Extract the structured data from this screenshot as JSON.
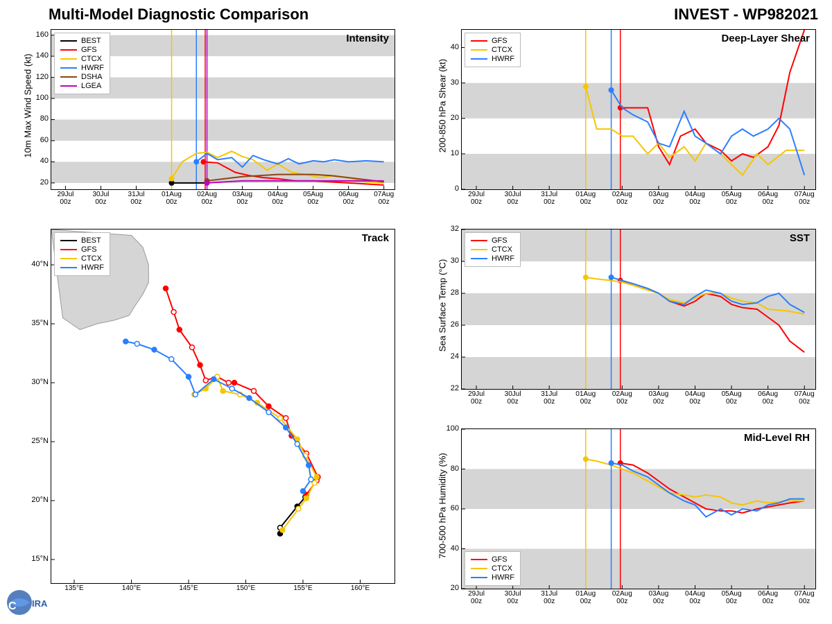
{
  "title_left": "Multi-Model Diagnostic Comparison",
  "title_right": "INVEST - WP982021",
  "colors": {
    "BEST": "#000000",
    "GFS": "#ff0000",
    "CTCX": "#f5c600",
    "HWRF": "#2a7fff",
    "DSHA": "#8b4513",
    "LGEA": "#c000c0",
    "band": "#d5d5d5",
    "grid": "#e0e0e0"
  },
  "x_ticks": [
    "29Jul\n00z",
    "30Jul\n00z",
    "31Jul\n00z",
    "01Aug\n00z",
    "02Aug\n00z",
    "03Aug\n00z",
    "04Aug\n00z",
    "05Aug\n00z",
    "06Aug\n00z",
    "07Aug\n00z"
  ],
  "intensity": {
    "title": "Intensity",
    "ylabel": "10m Max Wind Speed (kt)",
    "ylim": [
      14,
      165
    ],
    "yticks": [
      20,
      40,
      60,
      80,
      100,
      120,
      140,
      160
    ],
    "legend": [
      "BEST",
      "GFS",
      "CTCX",
      "HWRF",
      "DSHA",
      "LGEA"
    ],
    "vlines": {
      "CTCX": 3.0,
      "HWRF": 3.7,
      "GFS": 3.95,
      "LGEA": 4.0
    },
    "series": {
      "BEST": [
        [
          3,
          20
        ],
        [
          3.5,
          20
        ],
        [
          4,
          20
        ]
      ],
      "GFS": [
        [
          3.9,
          40
        ],
        [
          4.3,
          39
        ],
        [
          4.8,
          30
        ],
        [
          5.2,
          27
        ],
        [
          5.6,
          25
        ],
        [
          6.0,
          24
        ],
        [
          6.5,
          22
        ],
        [
          7.0,
          22
        ],
        [
          7.5,
          21
        ],
        [
          8.0,
          20
        ],
        [
          8.5,
          19
        ],
        [
          9.0,
          18
        ]
      ],
      "CTCX": [
        [
          3,
          24
        ],
        [
          3.3,
          40
        ],
        [
          3.7,
          48
        ],
        [
          4.0,
          49
        ],
        [
          4.3,
          44
        ],
        [
          4.7,
          50
        ],
        [
          5.0,
          45
        ],
        [
          5.3,
          42
        ],
        [
          5.7,
          32
        ],
        [
          6.0,
          38
        ],
        [
          6.4,
          30
        ],
        [
          6.8,
          28
        ],
        [
          7.2,
          25
        ],
        [
          7.6,
          27
        ],
        [
          8.0,
          25
        ],
        [
          8.5,
          21
        ],
        [
          9.0,
          20
        ]
      ],
      "HWRF": [
        [
          3.7,
          40
        ],
        [
          4.0,
          48
        ],
        [
          4.3,
          42
        ],
        [
          4.7,
          44
        ],
        [
          5.0,
          35
        ],
        [
          5.3,
          46
        ],
        [
          5.6,
          42
        ],
        [
          6.0,
          38
        ],
        [
          6.3,
          43
        ],
        [
          6.6,
          38
        ],
        [
          7.0,
          41
        ],
        [
          7.3,
          40
        ],
        [
          7.6,
          42
        ],
        [
          8.0,
          40
        ],
        [
          8.5,
          41
        ],
        [
          9.0,
          40
        ]
      ],
      "DSHA": [
        [
          4,
          22
        ],
        [
          4.5,
          24
        ],
        [
          5,
          26
        ],
        [
          5.5,
          27
        ],
        [
          6,
          28
        ],
        [
          6.5,
          28
        ],
        [
          7,
          28
        ],
        [
          7.5,
          27
        ],
        [
          8,
          25
        ],
        [
          8.5,
          23
        ],
        [
          9,
          21
        ]
      ],
      "LGEA": [
        [
          4,
          20
        ],
        [
          4.5,
          21
        ],
        [
          5,
          22
        ],
        [
          5.5,
          22
        ],
        [
          6,
          22
        ],
        [
          6.5,
          22
        ],
        [
          7,
          22
        ],
        [
          7.5,
          22
        ],
        [
          8,
          22
        ],
        [
          8.5,
          22
        ],
        [
          9,
          22
        ]
      ]
    }
  },
  "shear": {
    "title": "Deep-Layer Shear",
    "ylabel": "200-850 hPa Shear (kt)",
    "ylim": [
      0,
      45
    ],
    "yticks": [
      0,
      10,
      20,
      30,
      40
    ],
    "legend": [
      "GFS",
      "CTCX",
      "HWRF"
    ],
    "vlines": {
      "CTCX": 3.0,
      "HWRF": 3.7,
      "GFS": 3.95
    },
    "series": {
      "GFS": [
        [
          3.95,
          23
        ],
        [
          4.3,
          23
        ],
        [
          4.7,
          23
        ],
        [
          5.0,
          12
        ],
        [
          5.3,
          7
        ],
        [
          5.6,
          15
        ],
        [
          6.0,
          17
        ],
        [
          6.3,
          13
        ],
        [
          6.7,
          11
        ],
        [
          7.0,
          8
        ],
        [
          7.3,
          10
        ],
        [
          7.6,
          9
        ],
        [
          8.0,
          12
        ],
        [
          8.3,
          18
        ],
        [
          8.6,
          33
        ],
        [
          9.0,
          45
        ]
      ],
      "CTCX": [
        [
          3.0,
          29
        ],
        [
          3.3,
          17
        ],
        [
          3.7,
          17
        ],
        [
          4.0,
          15
        ],
        [
          4.3,
          15
        ],
        [
          4.7,
          10
        ],
        [
          5.0,
          13
        ],
        [
          5.3,
          9
        ],
        [
          5.7,
          12
        ],
        [
          6.0,
          8
        ],
        [
          6.3,
          13
        ],
        [
          6.7,
          10
        ],
        [
          7.0,
          7
        ],
        [
          7.3,
          4
        ],
        [
          7.7,
          10
        ],
        [
          8.0,
          7
        ],
        [
          8.5,
          11
        ],
        [
          9.0,
          11
        ]
      ],
      "HWRF": [
        [
          3.7,
          28
        ],
        [
          4.0,
          23
        ],
        [
          4.3,
          21
        ],
        [
          4.7,
          19
        ],
        [
          5.0,
          13
        ],
        [
          5.3,
          12
        ],
        [
          5.7,
          22
        ],
        [
          6.0,
          15
        ],
        [
          6.3,
          13
        ],
        [
          6.7,
          10
        ],
        [
          7.0,
          15
        ],
        [
          7.3,
          17
        ],
        [
          7.6,
          15
        ],
        [
          8.0,
          17
        ],
        [
          8.3,
          20
        ],
        [
          8.6,
          17
        ],
        [
          9.0,
          4
        ]
      ]
    }
  },
  "sst": {
    "title": "SST",
    "ylabel": "Sea Surface Temp (°C)",
    "ylim": [
      22,
      32
    ],
    "yticks": [
      22,
      24,
      26,
      28,
      30,
      32
    ],
    "legend": [
      "GFS",
      "CTCX",
      "HWRF"
    ],
    "vlines": {
      "CTCX": 3.0,
      "HWRF": 3.7,
      "GFS": 3.95
    },
    "series": {
      "GFS": [
        [
          3.95,
          28.8
        ],
        [
          4.3,
          28.6
        ],
        [
          4.7,
          28.3
        ],
        [
          5.0,
          28.0
        ],
        [
          5.3,
          27.5
        ],
        [
          5.7,
          27.2
        ],
        [
          6.0,
          27.5
        ],
        [
          6.3,
          28.0
        ],
        [
          6.7,
          27.8
        ],
        [
          7.0,
          27.3
        ],
        [
          7.3,
          27.1
        ],
        [
          7.7,
          27.0
        ],
        [
          8.0,
          26.5
        ],
        [
          8.3,
          26.0
        ],
        [
          8.6,
          25.0
        ],
        [
          9.0,
          24.3
        ]
      ],
      "CTCX": [
        [
          3.0,
          29.0
        ],
        [
          3.3,
          28.9
        ],
        [
          3.7,
          28.8
        ],
        [
          4.0,
          28.7
        ],
        [
          4.3,
          28.5
        ],
        [
          4.7,
          28.2
        ],
        [
          5.0,
          28.0
        ],
        [
          5.3,
          27.6
        ],
        [
          5.7,
          27.4
        ],
        [
          6.0,
          27.7
        ],
        [
          6.3,
          28.0
        ],
        [
          6.7,
          28.0
        ],
        [
          7.0,
          27.7
        ],
        [
          7.3,
          27.5
        ],
        [
          7.7,
          27.4
        ],
        [
          8.0,
          27.0
        ],
        [
          8.5,
          26.9
        ],
        [
          9.0,
          26.7
        ]
      ],
      "HWRF": [
        [
          3.7,
          29.0
        ],
        [
          4.0,
          28.8
        ],
        [
          4.3,
          28.6
        ],
        [
          4.7,
          28.3
        ],
        [
          5.0,
          28.0
        ],
        [
          5.3,
          27.5
        ],
        [
          5.7,
          27.3
        ],
        [
          6.0,
          27.8
        ],
        [
          6.3,
          28.2
        ],
        [
          6.7,
          28.0
        ],
        [
          7.0,
          27.5
        ],
        [
          7.3,
          27.3
        ],
        [
          7.7,
          27.4
        ],
        [
          8.0,
          27.8
        ],
        [
          8.3,
          28.0
        ],
        [
          8.6,
          27.3
        ],
        [
          9.0,
          26.8
        ]
      ]
    }
  },
  "rh": {
    "title": "Mid-Level RH",
    "ylabel": "700-500 hPa Humidity (%)",
    "ylim": [
      20,
      100
    ],
    "yticks": [
      20,
      40,
      60,
      80,
      100
    ],
    "legend": [
      "GFS",
      "CTCX",
      "HWRF"
    ],
    "vlines": {
      "CTCX": 3.0,
      "HWRF": 3.7,
      "GFS": 3.95
    },
    "series": {
      "GFS": [
        [
          3.95,
          83
        ],
        [
          4.3,
          82
        ],
        [
          4.7,
          78
        ],
        [
          5.0,
          74
        ],
        [
          5.3,
          70
        ],
        [
          5.7,
          66
        ],
        [
          6.0,
          63
        ],
        [
          6.3,
          60
        ],
        [
          6.7,
          59
        ],
        [
          7.0,
          59
        ],
        [
          7.3,
          58
        ],
        [
          7.7,
          60
        ],
        [
          8.0,
          61
        ],
        [
          8.3,
          62
        ],
        [
          8.6,
          63
        ],
        [
          9.0,
          64
        ]
      ],
      "CTCX": [
        [
          3.0,
          85
        ],
        [
          3.3,
          84
        ],
        [
          3.7,
          82
        ],
        [
          4.0,
          80
        ],
        [
          4.3,
          78
        ],
        [
          4.7,
          74
        ],
        [
          5.0,
          71
        ],
        [
          5.3,
          68
        ],
        [
          5.7,
          67
        ],
        [
          6.0,
          66
        ],
        [
          6.3,
          67
        ],
        [
          6.7,
          66
        ],
        [
          7.0,
          63
        ],
        [
          7.3,
          62
        ],
        [
          7.7,
          64
        ],
        [
          8.0,
          63
        ],
        [
          8.5,
          64
        ],
        [
          9.0,
          64
        ]
      ],
      "HWRF": [
        [
          3.7,
          83
        ],
        [
          4.0,
          82
        ],
        [
          4.3,
          79
        ],
        [
          4.7,
          76
        ],
        [
          5.0,
          72
        ],
        [
          5.3,
          68
        ],
        [
          5.7,
          64
        ],
        [
          6.0,
          62
        ],
        [
          6.3,
          56
        ],
        [
          6.7,
          60
        ],
        [
          7.0,
          57
        ],
        [
          7.3,
          60
        ],
        [
          7.7,
          59
        ],
        [
          8.0,
          62
        ],
        [
          8.3,
          63
        ],
        [
          8.6,
          65
        ],
        [
          9.0,
          65
        ]
      ]
    }
  },
  "track": {
    "title": "Track",
    "xlim": [
      133,
      163
    ],
    "ylim": [
      13,
      43
    ],
    "xticks": [
      135,
      140,
      145,
      150,
      155,
      160
    ],
    "yticks": [
      15,
      20,
      25,
      30,
      35,
      40
    ],
    "legend": [
      "BEST",
      "GFS",
      "CTCX",
      "HWRF"
    ],
    "series": {
      "BEST": [
        [
          153,
          17.2
        ],
        [
          153,
          17.7
        ],
        [
          154.5,
          19.5
        ],
        [
          155.2,
          20.3
        ]
      ],
      "GFS": [
        [
          155.3,
          20.5
        ],
        [
          156.2,
          21.7
        ],
        [
          156.3,
          22
        ],
        [
          155.3,
          24
        ],
        [
          154,
          25.5
        ],
        [
          153.5,
          27
        ],
        [
          152,
          28
        ],
        [
          150.7,
          29.3
        ],
        [
          149,
          30
        ],
        [
          148.5,
          30
        ],
        [
          147.5,
          30.5
        ],
        [
          146.5,
          30.2
        ],
        [
          146,
          31.5
        ],
        [
          145.3,
          33
        ],
        [
          144.2,
          34.5
        ],
        [
          143.7,
          36
        ],
        [
          143,
          38
        ]
      ],
      "CTCX": [
        [
          153.2,
          17.5
        ],
        [
          154.6,
          19.3
        ],
        [
          155.3,
          20.2
        ],
        [
          156.0,
          21.5
        ],
        [
          156.2,
          22.0
        ],
        [
          155.2,
          23.8
        ],
        [
          154.5,
          25.2
        ],
        [
          153.0,
          27.0
        ],
        [
          151.0,
          28.3
        ],
        [
          149.5,
          29
        ],
        [
          148.0,
          29.3
        ],
        [
          147.5,
          30.5
        ],
        [
          146.5,
          29.5
        ],
        [
          145.5,
          29.0
        ]
      ],
      "HWRF": [
        [
          155.0,
          20.8
        ],
        [
          155.7,
          21.8
        ],
        [
          155.5,
          23.0
        ],
        [
          154.5,
          24.8
        ],
        [
          153.5,
          26.2
        ],
        [
          152.0,
          27.5
        ],
        [
          150.3,
          28.7
        ],
        [
          148.8,
          29.5
        ],
        [
          147.2,
          30.3
        ],
        [
          145.6,
          29.0
        ],
        [
          145.0,
          30.5
        ],
        [
          143.5,
          32.0
        ],
        [
          142.0,
          32.8
        ],
        [
          140.5,
          33.3
        ],
        [
          139.5,
          33.5
        ]
      ]
    },
    "coast": [
      [
        134,
        35.5
      ],
      [
        135.5,
        34.5
      ],
      [
        137,
        35
      ],
      [
        138.5,
        35.3
      ],
      [
        139.8,
        35.7
      ],
      [
        140.3,
        36.5
      ],
      [
        141,
        37.5
      ],
      [
        141.5,
        38.5
      ],
      [
        141.5,
        40
      ],
      [
        141,
        41.5
      ],
      [
        140,
        42.5
      ]
    ]
  },
  "logo_text": "CIRA"
}
